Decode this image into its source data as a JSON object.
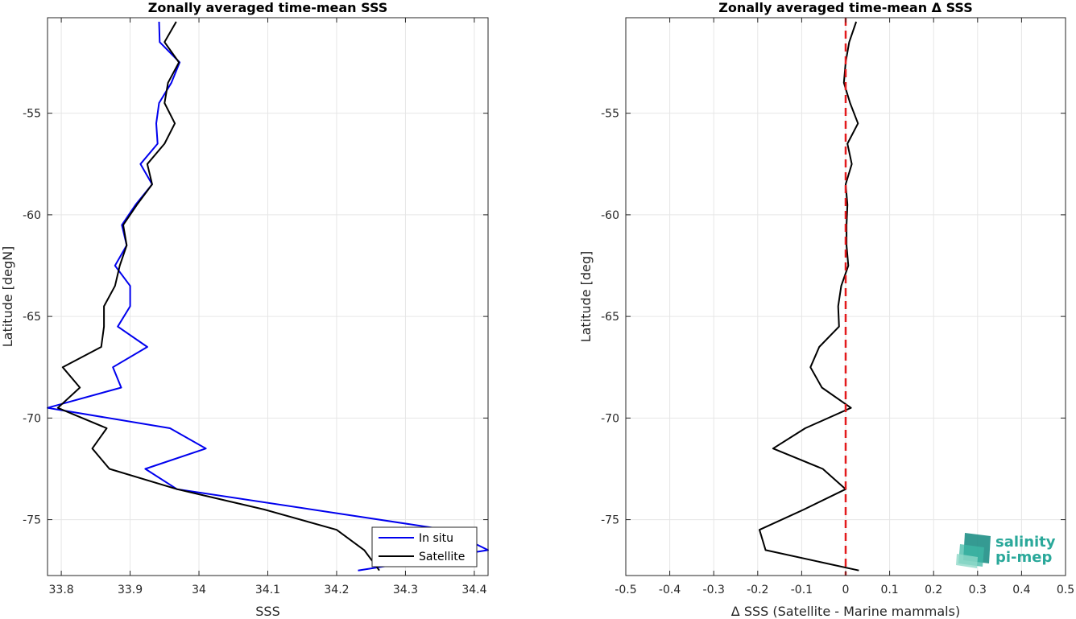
{
  "chart_data": [
    {
      "type": "line",
      "title": "Zonally averaged time-mean SSS",
      "xlabel": "SSS",
      "ylabel": "Latitude [degN]",
      "xlim": [
        33.78,
        34.42
      ],
      "ylim": [
        -77.75,
        -50.3
      ],
      "xticks": [
        33.8,
        33.9,
        34,
        34.1,
        34.2,
        34.3,
        34.4
      ],
      "xtick_labels": [
        "33.8",
        "33.9",
        "34",
        "34.1",
        "34.2",
        "34.3",
        "34.4"
      ],
      "yticks": [
        -55,
        -60,
        -65,
        -70,
        -75
      ],
      "ytick_labels": [
        "-55",
        "-60",
        "-65",
        "-70",
        "-75"
      ],
      "grid": true,
      "legend_position": "bottom-right",
      "series": [
        {
          "name": "In situ",
          "color": "#0000ee",
          "points": [
            [
              33.942,
              -50.5
            ],
            [
              33.943,
              -51.5
            ],
            [
              33.972,
              -52.5
            ],
            [
              33.96,
              -53.5
            ],
            [
              33.942,
              -54.5
            ],
            [
              33.938,
              -55.5
            ],
            [
              33.94,
              -56.5
            ],
            [
              33.915,
              -57.5
            ],
            [
              33.932,
              -58.5
            ],
            [
              33.908,
              -59.5
            ],
            [
              33.888,
              -60.5
            ],
            [
              33.895,
              -61.5
            ],
            [
              33.878,
              -62.5
            ],
            [
              33.9,
              -63.5
            ],
            [
              33.9,
              -64.5
            ],
            [
              33.882,
              -65.5
            ],
            [
              33.925,
              -66.5
            ],
            [
              33.875,
              -67.5
            ],
            [
              33.887,
              -68.5
            ],
            [
              33.78,
              -69.5
            ],
            [
              33.958,
              -70.5
            ],
            [
              34.01,
              -71.5
            ],
            [
              33.922,
              -72.5
            ],
            [
              33.968,
              -73.5
            ],
            [
              34.36,
              -75.5
            ],
            [
              34.42,
              -76.5
            ],
            [
              34.231,
              -77.5
            ]
          ]
        },
        {
          "name": "Satellite",
          "color": "#000000",
          "points": [
            [
              33.967,
              -50.5
            ],
            [
              33.95,
              -51.5
            ],
            [
              33.971,
              -52.5
            ],
            [
              33.955,
              -53.5
            ],
            [
              33.95,
              -54.5
            ],
            [
              33.965,
              -55.5
            ],
            [
              33.95,
              -56.5
            ],
            [
              33.925,
              -57.5
            ],
            [
              33.932,
              -58.5
            ],
            [
              33.91,
              -59.5
            ],
            [
              33.89,
              -60.5
            ],
            [
              33.895,
              -61.5
            ],
            [
              33.885,
              -62.5
            ],
            [
              33.878,
              -63.5
            ],
            [
              33.862,
              -64.5
            ],
            [
              33.862,
              -65.5
            ],
            [
              33.858,
              -66.5
            ],
            [
              33.802,
              -67.5
            ],
            [
              33.827,
              -68.5
            ],
            [
              33.795,
              -69.5
            ],
            [
              33.866,
              -70.5
            ],
            [
              33.845,
              -71.5
            ],
            [
              33.87,
              -72.5
            ],
            [
              33.968,
              -73.5
            ],
            [
              34.095,
              -74.5
            ],
            [
              34.2,
              -75.5
            ],
            [
              34.24,
              -76.5
            ],
            [
              34.262,
              -77.5
            ]
          ]
        }
      ]
    },
    {
      "type": "line",
      "title": "Zonally averaged time-mean Δ SSS",
      "xlabel": "Δ SSS (Satellite - Marine mammals)",
      "ylabel": "Latitude [deg]",
      "xlim": [
        -0.5,
        0.5
      ],
      "ylim": [
        -77.75,
        -50.3
      ],
      "xticks": [
        -0.5,
        -0.4,
        -0.3,
        -0.2,
        -0.1,
        0,
        0.1,
        0.2,
        0.3,
        0.4,
        0.5
      ],
      "xtick_labels": [
        "-0.5",
        "-0.4",
        "-0.3",
        "-0.2",
        "-0.1",
        "0",
        "0.1",
        "0.2",
        "0.3",
        "0.4",
        "0.5"
      ],
      "yticks": [
        -55,
        -60,
        -65,
        -70,
        -75
      ],
      "ytick_labels": [
        "-55",
        "-60",
        "-65",
        "-70",
        "-75"
      ],
      "grid": true,
      "reference_line": {
        "x": 0,
        "color": "#e31a1c",
        "style": "dashed"
      },
      "series": [
        {
          "color": "#000000",
          "points": [
            [
              0.024,
              -50.5
            ],
            [
              0.008,
              -51.5
            ],
            [
              0.0,
              -52.5
            ],
            [
              -0.004,
              -53.5
            ],
            [
              0.01,
              -54.5
            ],
            [
              0.028,
              -55.5
            ],
            [
              0.004,
              -56.5
            ],
            [
              0.014,
              -57.5
            ],
            [
              0.0,
              -58.5
            ],
            [
              0.004,
              -59.5
            ],
            [
              0.002,
              -60.5
            ],
            [
              0.002,
              -61.5
            ],
            [
              0.006,
              -62.5
            ],
            [
              -0.01,
              -63.5
            ],
            [
              -0.017,
              -64.5
            ],
            [
              -0.015,
              -65.5
            ],
            [
              -0.06,
              -66.5
            ],
            [
              -0.08,
              -67.5
            ],
            [
              -0.054,
              -68.5
            ],
            [
              0.012,
              -69.5
            ],
            [
              -0.092,
              -70.5
            ],
            [
              -0.165,
              -71.5
            ],
            [
              -0.052,
              -72.5
            ],
            [
              0.0,
              -73.5
            ],
            [
              -0.095,
              -74.5
            ],
            [
              -0.196,
              -75.5
            ],
            [
              -0.182,
              -76.5
            ],
            [
              0.03,
              -77.5
            ]
          ]
        }
      ]
    }
  ],
  "logo": {
    "line1": "salinity",
    "line2": "pi-mep",
    "color": "#2aa89a"
  }
}
